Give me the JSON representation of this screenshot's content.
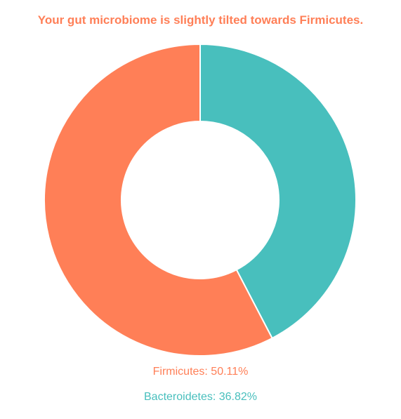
{
  "colors": {
    "firmicutes": "#ff7f57",
    "bacteroidetes": "#48bfbd",
    "title": "#ff7f57"
  },
  "chart_data": {
    "type": "pie",
    "title": "Your gut microbiome is slightly tilted towards Firmicutes.",
    "hole": true,
    "series": [
      {
        "name": "Firmicutes",
        "value": 50.11,
        "display": "Firmicutes: 50.11%",
        "color": "#ff7f57"
      },
      {
        "name": "Bacteroidetes",
        "value": 36.82,
        "display": "Bacteroidetes: 36.82%",
        "color": "#48bfbd"
      }
    ],
    "legend_position": "bottom"
  }
}
